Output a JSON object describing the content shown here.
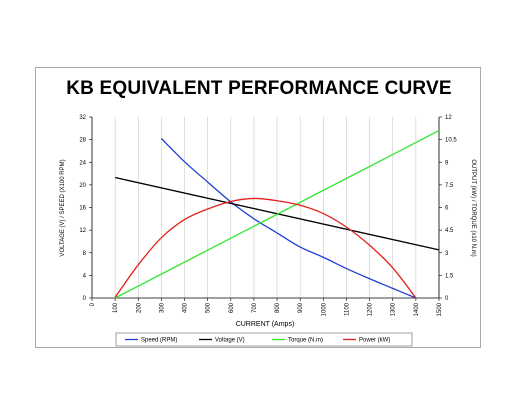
{
  "chart_data": {
    "type": "line",
    "title": "KB EQUIVALENT PERFORMANCE CURVE",
    "xlabel": "CURRENT (Amps)",
    "ylabel_left": "VOLTAGE (V) / SPEED (X100 RPM)",
    "ylabel_right": "OUTPUT (kW) / TORQUE (x10 N.m)",
    "xlim": [
      0,
      1500
    ],
    "ylim_left": [
      0,
      32
    ],
    "ylim_right": [
      0,
      12
    ],
    "x_ticks": [
      0,
      100,
      200,
      300,
      400,
      500,
      600,
      700,
      800,
      900,
      1000,
      1100,
      1200,
      1300,
      1400,
      1500
    ],
    "y_left_ticks": [
      "0",
      "4",
      "8",
      "12",
      "16",
      "20",
      "24",
      "28",
      "32"
    ],
    "y_right_ticks": [
      "0",
      "1.5",
      "3",
      "4.5",
      "6",
      "7.5",
      "9",
      "10.5",
      "12"
    ],
    "grid": "vertical",
    "legend_position": "bottom",
    "series": [
      {
        "name": "Speed (RPM)",
        "axis": "left",
        "color": "#1f3fd6",
        "points": [
          [
            300,
            28.2
          ],
          [
            400,
            24.1
          ],
          [
            500,
            20.5
          ],
          [
            600,
            17.0
          ],
          [
            700,
            14.0
          ],
          [
            800,
            11.5
          ],
          [
            900,
            9.0
          ],
          [
            1000,
            7.2
          ],
          [
            1100,
            5.2
          ],
          [
            1200,
            3.4
          ],
          [
            1300,
            1.7
          ],
          [
            1400,
            0
          ]
        ]
      },
      {
        "name": "Voltage (V)",
        "axis": "left",
        "color": "#000000",
        "points": [
          [
            100,
            21.3
          ],
          [
            1500,
            8.5
          ]
        ]
      },
      {
        "name": "Torque (N.m)",
        "axis": "right",
        "color": "#2ee62e",
        "points": [
          [
            100,
            0
          ],
          [
            1500,
            11.1
          ]
        ]
      },
      {
        "name": "Power (kW)",
        "axis": "right",
        "color": "#e3201c",
        "points": [
          [
            100,
            0.05
          ],
          [
            200,
            2.2
          ],
          [
            300,
            4.0
          ],
          [
            400,
            5.2
          ],
          [
            500,
            5.9
          ],
          [
            600,
            6.4
          ],
          [
            700,
            6.6
          ],
          [
            800,
            6.45
          ],
          [
            900,
            6.15
          ],
          [
            1000,
            5.6
          ],
          [
            1100,
            4.7
          ],
          [
            1200,
            3.5
          ],
          [
            1300,
            2.0
          ],
          [
            1400,
            0
          ]
        ]
      }
    ]
  }
}
